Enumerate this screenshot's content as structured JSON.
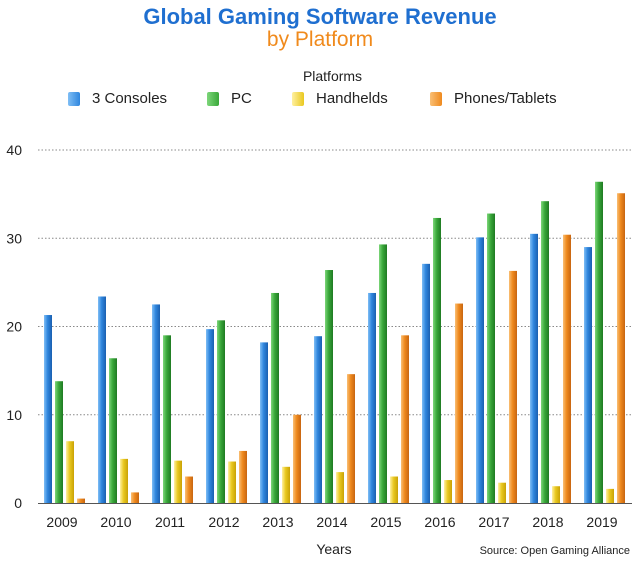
{
  "chart_data": {
    "type": "bar",
    "title": "Global Gaming Software Revenue",
    "subtitle": "by Platform",
    "legend_title": "Platforms",
    "xlabel": "Years",
    "ylabel": "",
    "source": "Source: Open Gaming Alliance",
    "ylim": [
      0,
      40
    ],
    "yticks": [
      0,
      10,
      20,
      30,
      40
    ],
    "grid": true,
    "legend_position": "top",
    "categories": [
      "2009",
      "2010",
      "2011",
      "2012",
      "2013",
      "2014",
      "2015",
      "2016",
      "2017",
      "2018",
      "2019"
    ],
    "series": [
      {
        "name": "3 Consoles",
        "color": "#2f86de",
        "values": [
          21.3,
          23.4,
          22.5,
          19.7,
          18.2,
          18.9,
          23.8,
          27.1,
          30.1,
          30.5,
          29.0
        ]
      },
      {
        "name": "PC",
        "color": "#3aa83a",
        "values": [
          13.8,
          16.4,
          19.0,
          20.7,
          23.8,
          26.4,
          29.3,
          32.3,
          32.8,
          34.2,
          36.4
        ]
      },
      {
        "name": "Handhelds",
        "color": "#e9c81f",
        "values": [
          7.0,
          5.0,
          4.8,
          4.7,
          4.1,
          3.5,
          3.0,
          2.6,
          2.3,
          1.9,
          1.6
        ]
      },
      {
        "name": "Phones/Tablets",
        "color": "#ef8a1e",
        "values": [
          0.5,
          1.2,
          3.0,
          5.9,
          10.0,
          14.6,
          19.0,
          22.6,
          26.3,
          30.4,
          35.1
        ]
      }
    ]
  }
}
